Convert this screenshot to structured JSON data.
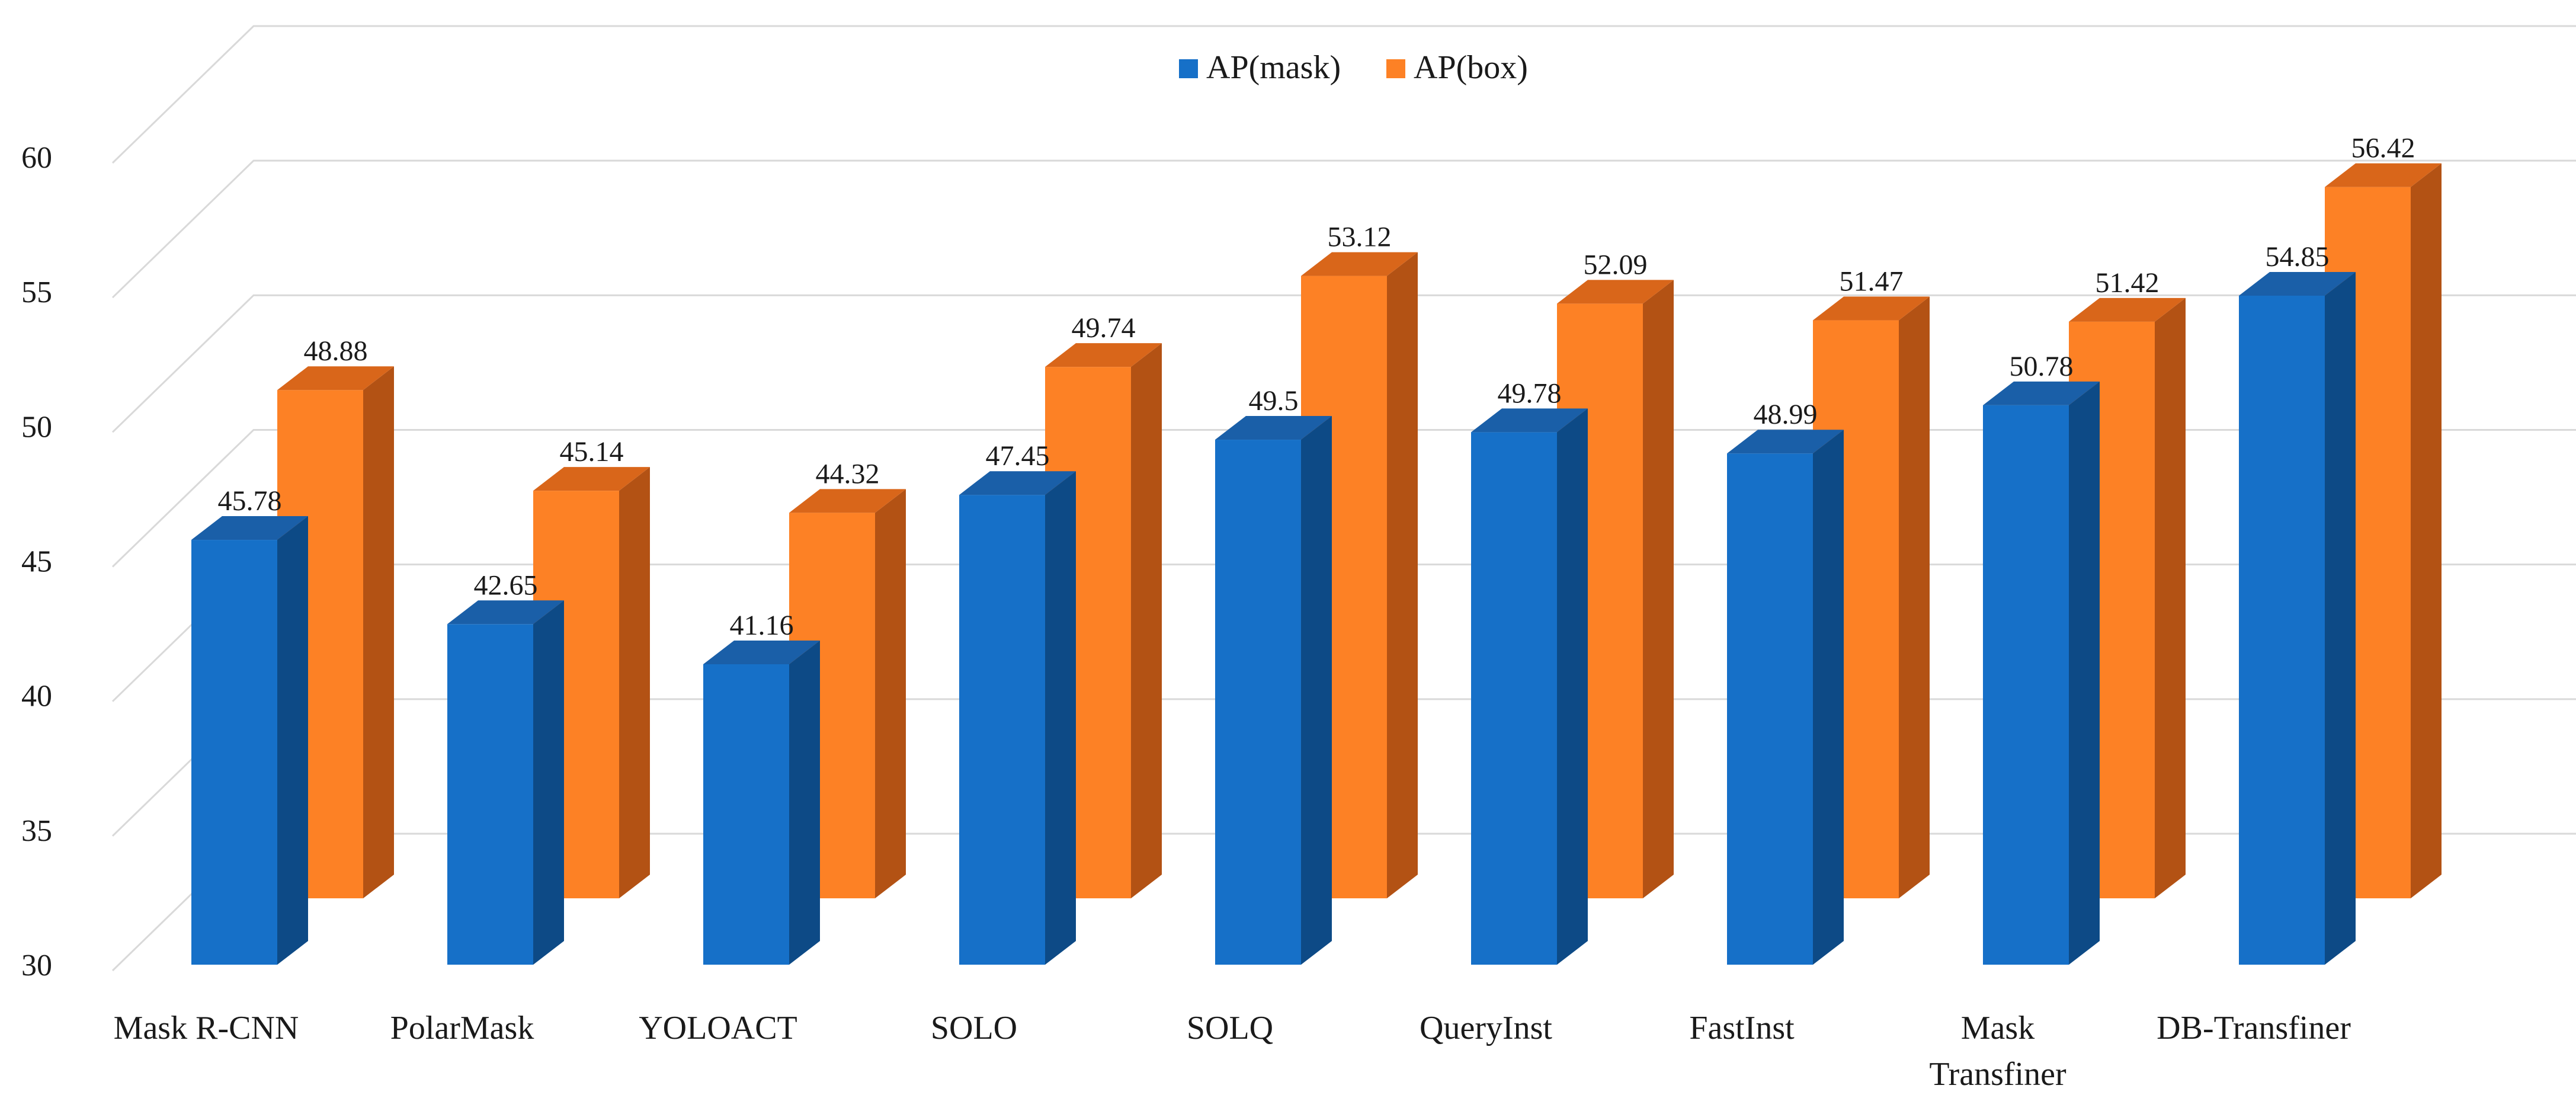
{
  "chart_data": {
    "type": "bar",
    "title": "",
    "xlabel": "",
    "ylabel": "",
    "ylim": [
      30,
      60
    ],
    "ytick_step": 5,
    "yticks": [
      "30",
      "35",
      "40",
      "45",
      "50",
      "55",
      "60"
    ],
    "grid": true,
    "legend_position": "top-center",
    "categories": [
      "Mask R-CNN",
      "PolarMask",
      "YOLOACT",
      "SOLO",
      "SOLQ",
      "QueryInst",
      "FastInst",
      "Mask Transfiner",
      "DB-Transfiner"
    ],
    "category_lines": [
      [
        "Mask R-CNN"
      ],
      [
        "PolarMask"
      ],
      [
        "YOLOACT"
      ],
      [
        "SOLO"
      ],
      [
        "SOLQ"
      ],
      [
        "QueryInst"
      ],
      [
        "FastInst"
      ],
      [
        "Mask",
        "Transfiner"
      ],
      [
        "DB-Transfiner"
      ]
    ],
    "series": [
      {
        "name": "AP(mask)",
        "color": "#1670c8",
        "side_color": "#0d4a86",
        "top_color": "#1a5fa8",
        "values": [
          45.78,
          42.65,
          41.16,
          47.45,
          49.5,
          49.78,
          48.99,
          50.78,
          54.85
        ],
        "labels": [
          "45.78",
          "42.65",
          "41.16",
          "47.45",
          "49.5",
          "49.78",
          "48.99",
          "50.78",
          "54.85"
        ]
      },
      {
        "name": "AP(box)",
        "color": "#fd8125",
        "side_color": "#b35214",
        "top_color": "#d9661a",
        "values": [
          48.88,
          45.14,
          44.32,
          49.74,
          53.12,
          52.09,
          51.47,
          51.42,
          56.42
        ],
        "labels": [
          "48.88",
          "45.14",
          "44.32",
          "49.74",
          "53.12",
          "52.09",
          "51.47",
          "51.42",
          "56.42"
        ]
      }
    ]
  }
}
